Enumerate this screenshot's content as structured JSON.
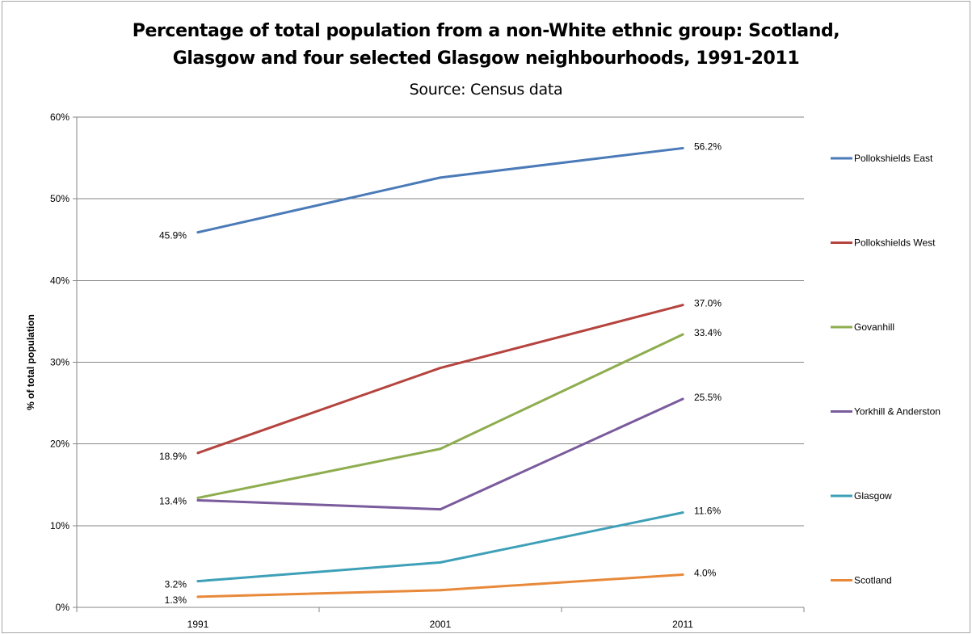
{
  "chart_data": {
    "type": "line",
    "title_lines": [
      "Percentage of total population from a non-White ethnic group: Scotland,",
      "Glasgow and four selected Glasgow neighbourhoods, 1991-2011"
    ],
    "subtitle": "Source: Census data",
    "xlabel": "",
    "ylabel": "% of total population",
    "categories": [
      "1991",
      "2001",
      "2011"
    ],
    "ylim": [
      0,
      60
    ],
    "yticks": [
      0,
      10,
      20,
      30,
      40,
      50,
      60
    ],
    "ytick_labels": [
      "0%",
      "10%",
      "20%",
      "30%",
      "40%",
      "50%",
      "60%"
    ],
    "grid": true,
    "legend_position": "right",
    "series": [
      {
        "name": "Pollokshields East",
        "color": "#4a7ab8",
        "values": [
          45.9,
          52.6,
          56.2
        ],
        "labels": [
          "45.9%",
          "",
          "56.2%"
        ]
      },
      {
        "name": "Pollokshields West",
        "color": "#b5443f",
        "values": [
          18.9,
          29.3,
          37.0
        ],
        "labels": [
          "18.9%",
          "",
          "37.0%"
        ]
      },
      {
        "name": "Govanhill",
        "color": "#8ead4f",
        "values": [
          13.4,
          19.4,
          33.4
        ],
        "labels": [
          "13.4%",
          "",
          "33.4%"
        ]
      },
      {
        "name": "Yorkhill & Anderston",
        "color": "#7a5b9c",
        "values": [
          13.1,
          12.0,
          25.5
        ],
        "labels": [
          "",
          "",
          "25.5%"
        ]
      },
      {
        "name": "Glasgow",
        "color": "#3ea0b8",
        "values": [
          3.2,
          5.5,
          11.6
        ],
        "labels": [
          "3.2%",
          "",
          "11.6%"
        ]
      },
      {
        "name": "Scotland",
        "color": "#e8893a",
        "values": [
          1.3,
          2.1,
          4.0
        ],
        "labels": [
          "1.3%",
          "",
          "4.0%"
        ]
      }
    ]
  }
}
